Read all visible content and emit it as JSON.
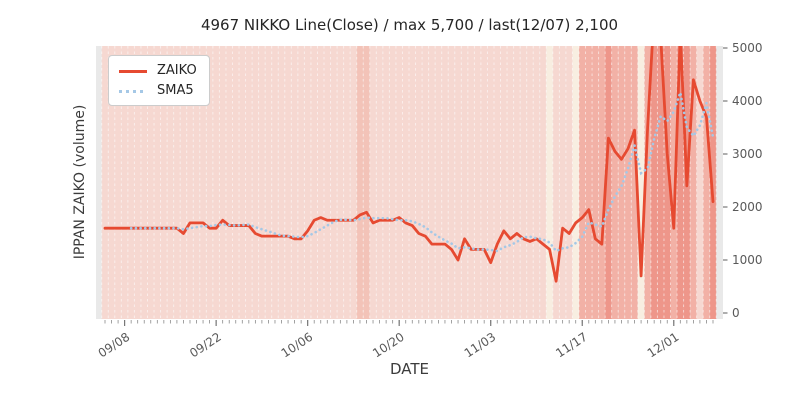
{
  "title": "4967 NIKKO Line(Close) / max 5,700 / last(12/07) 2,100",
  "axes": {
    "xlabel": "DATE",
    "ylabel": "IPPAN ZAIKO (volume)",
    "x_major_ticks": [
      "09/08",
      "09/22",
      "10/06",
      "10/20",
      "11/03",
      "11/17",
      "12/01"
    ],
    "y_ticks": [
      0,
      1000,
      2000,
      3000,
      4000,
      5000
    ],
    "y_axis_side": "right"
  },
  "legend": {
    "items": [
      {
        "label": "ZAIKO",
        "style": "solid",
        "color": "#e64a31"
      },
      {
        "label": "SMA5",
        "style": "dotted",
        "color": "#a5c8e6"
      }
    ]
  },
  "colors": {
    "zaiko_line": "#e64a31",
    "sma_line": "#a5c8e6",
    "plot_margin_gray": "#e9e9e9",
    "grid_white": "rgba(255,255,255,0.55)",
    "tick": "#8a8a8a",
    "band_levels": {
      "base": "#f6d8d1",
      "med_light": "#f3c3b8",
      "med": "#f2b1a6",
      "dark": "#ee968a",
      "cream": "#f8eee1"
    }
  },
  "background_bands": {
    "default": "base",
    "overrides": {
      "10/14": "med_light",
      "10/15": "med_light",
      "11/12": "cream",
      "11/16": "cream",
      "11/17": "med",
      "11/18": "med",
      "11/19": "med",
      "11/20": "med",
      "11/21": "dark",
      "11/22": "med",
      "11/23": "med",
      "11/24": "med",
      "11/25": "med",
      "11/26": "cream",
      "11/27": "med",
      "11/28": "dark",
      "11/29": "dark",
      "11/30": "dark",
      "12/01": "med",
      "12/02": "dark",
      "12/03": "dark",
      "12/04": "med",
      "12/06": "med",
      "12/07": "dark"
    }
  },
  "chart_data": {
    "type": "line",
    "title": "4967 NIKKO Line(Close) / max 5,700 / last(12/07) 2,100",
    "xlabel": "DATE",
    "ylabel": "IPPAN ZAIKO (volume)",
    "ylim": [
      -110,
      5060
    ],
    "grid": "vertical-white-dashed-per-day",
    "legend_position": "upper-left",
    "x": [
      "09/05",
      "09/06",
      "09/07",
      "09/08",
      "09/09",
      "09/10",
      "09/11",
      "09/12",
      "09/13",
      "09/14",
      "09/15",
      "09/16",
      "09/17",
      "09/18",
      "09/19",
      "09/20",
      "09/21",
      "09/22",
      "09/23",
      "09/24",
      "09/25",
      "09/26",
      "09/27",
      "09/28",
      "09/29",
      "09/30",
      "10/01",
      "10/02",
      "10/03",
      "10/04",
      "10/05",
      "10/06",
      "10/07",
      "10/08",
      "10/09",
      "10/10",
      "10/11",
      "10/12",
      "10/13",
      "10/14",
      "10/15",
      "10/16",
      "10/17",
      "10/18",
      "10/19",
      "10/20",
      "10/21",
      "10/22",
      "10/23",
      "10/24",
      "10/25",
      "10/26",
      "10/27",
      "10/28",
      "10/29",
      "10/30",
      "10/31",
      "11/01",
      "11/02",
      "11/03",
      "11/04",
      "11/05",
      "11/06",
      "11/07",
      "11/08",
      "11/09",
      "11/10",
      "11/11",
      "11/12",
      "11/13",
      "11/14",
      "11/15",
      "11/16",
      "11/17",
      "11/18",
      "11/19",
      "11/20",
      "11/21",
      "11/22",
      "11/23",
      "11/24",
      "11/25",
      "11/26",
      "11/27",
      "11/28",
      "11/29",
      "11/30",
      "12/01",
      "12/02",
      "12/03",
      "12/04",
      "12/05",
      "12/06",
      "12/07"
    ],
    "series": [
      {
        "name": "ZAIKO",
        "values": [
          1600,
          1600,
          1600,
          1600,
          1600,
          1600,
          1600,
          1600,
          1600,
          1600,
          1600,
          1600,
          1500,
          1700,
          1700,
          1700,
          1600,
          1600,
          1750,
          1650,
          1650,
          1650,
          1650,
          1500,
          1450,
          1450,
          1450,
          1450,
          1450,
          1400,
          1400,
          1550,
          1750,
          1800,
          1750,
          1750,
          1750,
          1750,
          1750,
          1850,
          1900,
          1700,
          1750,
          1750,
          1750,
          1800,
          1700,
          1650,
          1500,
          1450,
          1300,
          1300,
          1300,
          1200,
          1000,
          1400,
          1200,
          1200,
          1200,
          950,
          1300,
          1550,
          1400,
          1500,
          1400,
          1350,
          1400,
          1300,
          1200,
          600,
          1600,
          1500,
          1700,
          1800,
          1950,
          1400,
          1300,
          3300,
          3050,
          2900,
          3100,
          3450,
          700,
          3500,
          5700,
          5200,
          3000,
          1600,
          5300,
          2400,
          4400,
          4000,
          3700,
          2100
        ]
      },
      {
        "name": "SMA5",
        "derived": "rolling mean of ZAIKO, window=5"
      }
    ],
    "stats_shown": {
      "max": "5,700",
      "last_date": "12/07",
      "last_value": "2,100"
    }
  }
}
